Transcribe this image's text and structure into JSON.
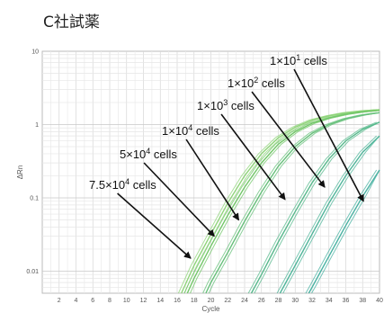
{
  "page": {
    "title": "C社試薬"
  },
  "chart_data": {
    "type": "line",
    "title": "C社試薬",
    "xlabel": "Cycle",
    "ylabel": "ΔRn",
    "xlim": [
      0,
      40
    ],
    "ylim": [
      0.005,
      10
    ],
    "y_scale": "log",
    "grid": true,
    "x_ticks": [
      2,
      4,
      6,
      8,
      10,
      12,
      14,
      16,
      18,
      20,
      22,
      24,
      26,
      28,
      30,
      32,
      34,
      36,
      38,
      40
    ],
    "y_ticks": [
      {
        "value": 10,
        "label": "10"
      },
      {
        "value": 1,
        "label": "1"
      },
      {
        "value": 0.1,
        "label": "0.1"
      },
      {
        "value": 0.01,
        "label": "0.01"
      }
    ],
    "series": [
      {
        "name": "7.5×10⁴ cells",
        "color": "#8fd47a",
        "x": [
          16.5,
          18,
          20,
          22,
          24,
          26,
          28,
          30,
          32,
          34,
          36,
          38,
          40
        ],
        "y": [
          0.005,
          0.012,
          0.032,
          0.085,
          0.2,
          0.4,
          0.66,
          0.92,
          1.15,
          1.32,
          1.45,
          1.54,
          1.6
        ]
      },
      {
        "name": "5×10⁴ cells",
        "color": "#72c768",
        "x": [
          17.2,
          18,
          20,
          22,
          24,
          26,
          28,
          30,
          32,
          34,
          36,
          38,
          40
        ],
        "y": [
          0.005,
          0.008,
          0.022,
          0.058,
          0.14,
          0.3,
          0.54,
          0.8,
          1.04,
          1.23,
          1.38,
          1.49,
          1.56
        ]
      },
      {
        "name": "1×10⁴ cells",
        "color": "#66c07a",
        "x": [
          19.4,
          20,
          22,
          24,
          26,
          28,
          30,
          32,
          34,
          36,
          38,
          40
        ],
        "y": [
          0.005,
          0.007,
          0.018,
          0.048,
          0.12,
          0.27,
          0.5,
          0.76,
          1.0,
          1.2,
          1.35,
          1.45
        ]
      },
      {
        "name": "1×10³ cells",
        "color": "#57b98c",
        "x": [
          24.8,
          26,
          28,
          30,
          32,
          34,
          36,
          38,
          40
        ],
        "y": [
          0.005,
          0.009,
          0.025,
          0.065,
          0.16,
          0.34,
          0.6,
          0.86,
          1.08
        ]
      },
      {
        "name": "1×10² cells",
        "color": "#4fb59a",
        "x": [
          28.2,
          30,
          32,
          34,
          36,
          38,
          40
        ],
        "y": [
          0.005,
          0.012,
          0.032,
          0.085,
          0.2,
          0.42,
          0.7
        ]
      },
      {
        "name": "1×10¹ cells",
        "color": "#48b2a2",
        "x": [
          31.6,
          32,
          34,
          36,
          38,
          40
        ],
        "y": [
          0.005,
          0.006,
          0.016,
          0.042,
          0.105,
          0.24
        ]
      }
    ],
    "annotations": [
      {
        "base": "1×10",
        "exp": "1",
        "suffix": " cells",
        "arrow_to": [
          38.1,
          0.09
        ]
      },
      {
        "base": "1×10",
        "exp": "2",
        "suffix": " cells",
        "arrow_to": [
          33.5,
          0.14
        ]
      },
      {
        "base": "1×10",
        "exp": "3",
        "suffix": " cells",
        "arrow_to": [
          28.8,
          0.095
        ]
      },
      {
        "base": "1×10",
        "exp": "4",
        "suffix": " cells",
        "arrow_to": [
          23.3,
          0.05
        ]
      },
      {
        "base": "5×10",
        "exp": "4",
        "suffix": " cells",
        "arrow_to": [
          20.4,
          0.03
        ]
      },
      {
        "base": "7.5×10",
        "exp": "4",
        "suffix": " cells",
        "arrow_to": [
          17.6,
          0.015
        ]
      }
    ]
  }
}
